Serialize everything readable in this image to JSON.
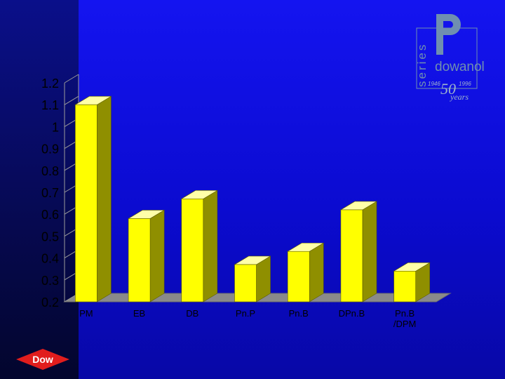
{
  "chart_data": {
    "type": "bar",
    "categories": [
      "PM",
      "EB",
      "DB",
      "Pn.P",
      "Pn.B",
      "DPn.B",
      "Pn.B /DPM"
    ],
    "category_lines": [
      [
        "PM"
      ],
      [
        "EB"
      ],
      [
        "DB"
      ],
      [
        "Pn.P"
      ],
      [
        "Pn.B"
      ],
      [
        "DPn.B"
      ],
      [
        "Pn.B",
        "/DPM"
      ]
    ],
    "values": [
      1.1,
      0.58,
      0.67,
      0.37,
      0.43,
      0.62,
      0.34
    ],
    "ylim": [
      0.2,
      1.2
    ],
    "yticks": [
      "1.2",
      "1.1",
      "1",
      "0.9",
      "0.8",
      "0.7",
      "0.6",
      "0.5",
      "0.4",
      "0.3",
      "0.2"
    ],
    "title": "",
    "xlabel": "",
    "ylabel": "",
    "grid": false,
    "colors": {
      "bar_front": "#ffff00",
      "bar_side": "#8f8f00",
      "bar_top": "#ffffa8",
      "floor": "#8a8a8a",
      "axis": "#9a9a9a",
      "text": "#000000",
      "background": "#0b0bd8"
    }
  },
  "logo": {
    "word": "series",
    "brand": "dowanol",
    "year_start": "1946",
    "year_end": "1996",
    "anniversary": "50",
    "years": "years"
  },
  "footer": {
    "company": "Dow"
  }
}
